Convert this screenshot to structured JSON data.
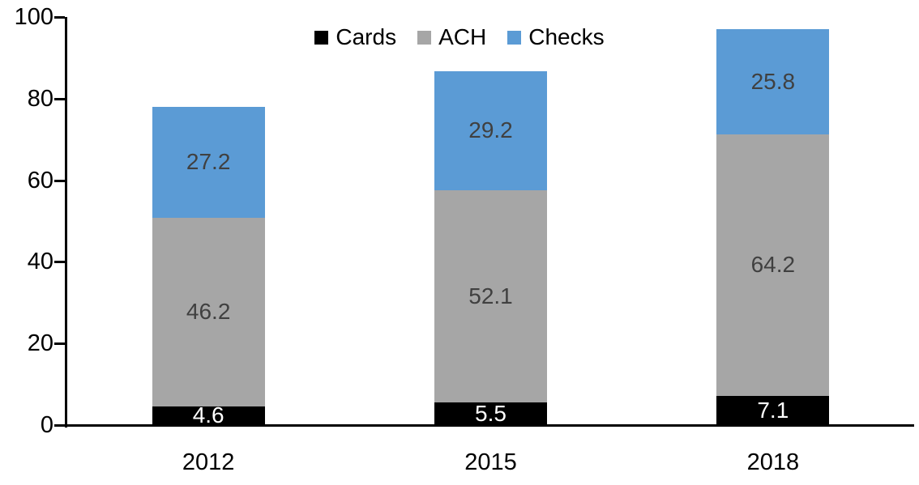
{
  "chart_data": {
    "type": "bar",
    "stacked": true,
    "title": "",
    "categories": [
      "2012",
      "2015",
      "2018"
    ],
    "series": [
      {
        "name": "Cards",
        "color": "#000000",
        "label_color": "#FFFFFF",
        "values": [
          4.6,
          5.5,
          7.1
        ]
      },
      {
        "name": "ACH",
        "color": "#A6A6A6",
        "label_color": "#404040",
        "values": [
          46.2,
          52.1,
          64.2
        ]
      },
      {
        "name": "Checks",
        "color": "#5B9BD5",
        "label_color": "#404040",
        "values": [
          27.2,
          29.2,
          25.8
        ]
      }
    ],
    "y_axis": {
      "min": 0,
      "max": 100,
      "ticks": [
        0,
        20,
        40,
        60,
        80,
        100
      ],
      "tick_labels": [
        "0",
        "20",
        "40",
        "60",
        "80",
        "100"
      ]
    },
    "x_axis": {
      "tick_labels": [
        "2012",
        "2015",
        "2018"
      ]
    },
    "legend": {
      "position": "top",
      "entries": [
        "Cards",
        "ACH",
        "Checks"
      ]
    },
    "grid": false,
    "value_label_decimals": 1,
    "axis_color": "#000000"
  }
}
